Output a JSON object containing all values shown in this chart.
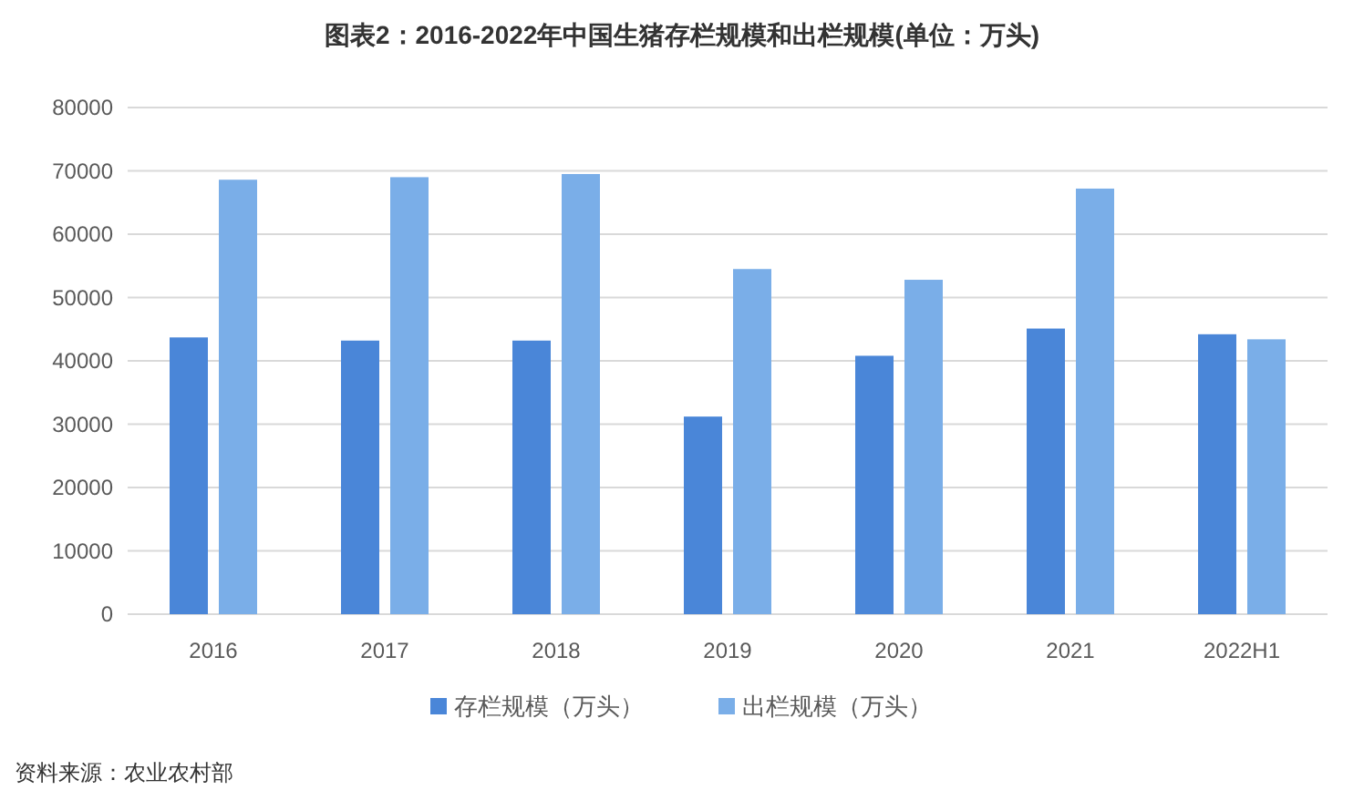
{
  "chart_data": {
    "type": "bar",
    "title": "图表2：2016-2022年中国生猪存栏规模和出栏规模(单位：万头)",
    "categories": [
      "2016",
      "2017",
      "2018",
      "2019",
      "2020",
      "2021",
      "2022H1"
    ],
    "series": [
      {
        "name": "存栏规模（万头）",
        "color": "#4a86d8",
        "values": [
          43700,
          43200,
          43200,
          31200,
          40800,
          45100,
          44200
        ]
      },
      {
        "name": "出栏规模（万头）",
        "color": "#7aaee8",
        "values": [
          68600,
          69000,
          69500,
          54500,
          52800,
          67200,
          43400
        ]
      }
    ],
    "ylim": [
      0,
      80000
    ],
    "yticks": [
      0,
      10000,
      20000,
      30000,
      40000,
      50000,
      60000,
      70000,
      80000
    ],
    "grid": "y",
    "legend": "bottom",
    "annotations": [
      "资料来源：农业农村部"
    ]
  }
}
